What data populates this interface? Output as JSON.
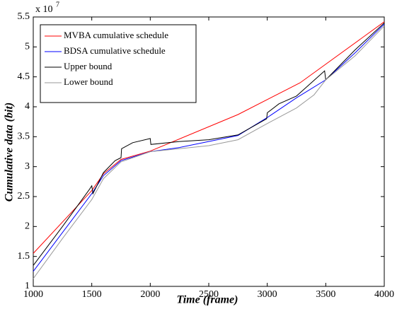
{
  "chart_data": {
    "type": "line",
    "xlabel": "Time (frame)",
    "ylabel": "Cumulative data (bit)",
    "y_multiplier": "x 10",
    "y_multiplier_exponent": "7",
    "xlim": [
      1000,
      4000
    ],
    "ylim": [
      1,
      5.5
    ],
    "xticks": [
      1000,
      1500,
      2000,
      2500,
      3000,
      3500,
      4000
    ],
    "yticks": [
      1,
      1.5,
      2,
      2.5,
      3,
      3.5,
      4,
      4.5,
      5,
      5.5
    ],
    "legend": "upper-left",
    "series": [
      {
        "name": "MVBA cumulative schedule",
        "color": "#ff0000",
        "x": [
          1000,
          1500,
          1600,
          1750,
          2000,
          2750,
          3280,
          4000
        ],
        "values": [
          1.55,
          2.6,
          2.88,
          3.12,
          3.26,
          3.87,
          4.4,
          5.42
        ]
      },
      {
        "name": "BDSA cumulative schedule",
        "color": "#0000ff",
        "x": [
          1000,
          1250,
          1500,
          1600,
          1750,
          2000,
          2250,
          2500,
          2750,
          3000,
          3250,
          3500,
          3750,
          4000
        ],
        "values": [
          1.25,
          1.9,
          2.55,
          2.85,
          3.1,
          3.25,
          3.32,
          3.42,
          3.52,
          3.82,
          4.15,
          4.45,
          4.9,
          5.38
        ]
      },
      {
        "name": "Upper bound",
        "color": "#000000",
        "x": [
          1000,
          1250,
          1480,
          1500,
          1510,
          1600,
          1700,
          1750,
          1755,
          1850,
          2000,
          2005,
          2250,
          2500,
          2750,
          2995,
          3000,
          3100,
          3250,
          3490,
          3500,
          3750,
          4000
        ],
        "values": [
          1.35,
          2.0,
          2.62,
          2.68,
          2.55,
          2.9,
          3.1,
          3.15,
          3.3,
          3.4,
          3.47,
          3.37,
          3.42,
          3.45,
          3.53,
          3.8,
          3.9,
          4.05,
          4.18,
          4.6,
          4.45,
          4.95,
          5.4
        ]
      },
      {
        "name": "Lower bound",
        "color": "#999999",
        "x": [
          1000,
          1250,
          1500,
          1600,
          1750,
          2000,
          2250,
          2500,
          2750,
          3000,
          3250,
          3400,
          3500,
          3750,
          4000
        ],
        "values": [
          1.13,
          1.8,
          2.45,
          2.8,
          3.08,
          3.25,
          3.3,
          3.35,
          3.45,
          3.72,
          3.98,
          4.2,
          4.45,
          4.85,
          5.35
        ]
      }
    ]
  }
}
